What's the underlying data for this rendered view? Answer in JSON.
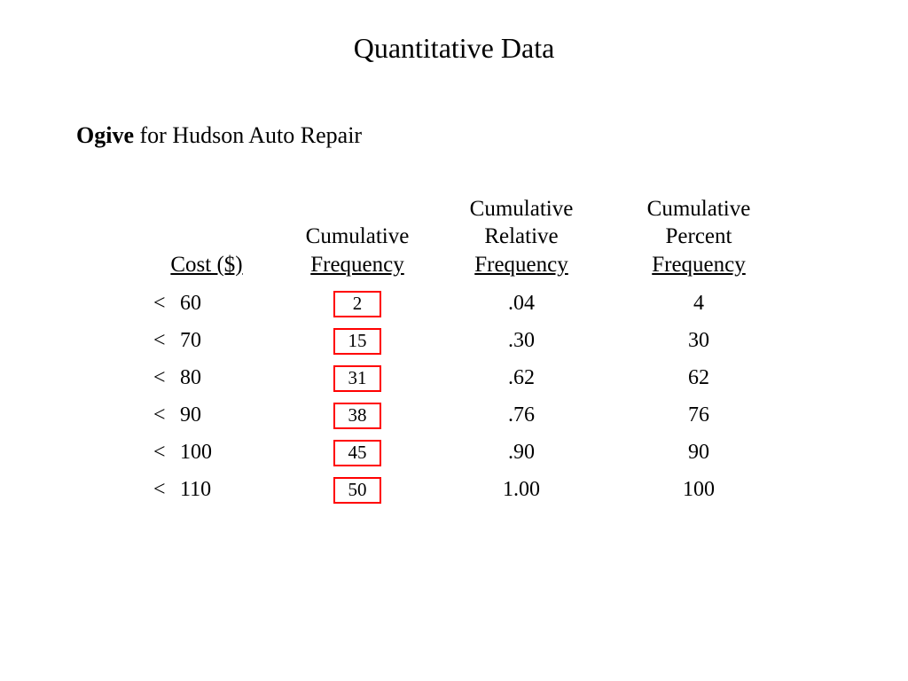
{
  "title": "Quantitative Data",
  "subtitle_bold": "Ogive",
  "subtitle_rest": " for Hudson Auto Repair",
  "columns": {
    "cost": {
      "line1": "",
      "line2": "Cost ($)"
    },
    "freq": {
      "line1": "Cumulative",
      "line2": "Frequency"
    },
    "rel": {
      "line1": "Cumulative",
      "line2": "Relative",
      "line3": "Frequency"
    },
    "pct": {
      "line1": "Cumulative",
      "line2": "Percent",
      "line3": "Frequency"
    }
  },
  "rows": [
    {
      "cost": "60",
      "freq": "2",
      "rel": ".04",
      "pct": "4"
    },
    {
      "cost": "70",
      "freq": "15",
      "rel": ".30",
      "pct": "30"
    },
    {
      "cost": "80",
      "freq": "31",
      "rel": ".62",
      "pct": "62"
    },
    {
      "cost": "90",
      "freq": "38",
      "rel": ".76",
      "pct": "76"
    },
    {
      "cost": "100",
      "freq": "45",
      "rel": ".90",
      "pct": "90"
    },
    {
      "cost": "110",
      "freq": "50",
      "rel": "1.00",
      "pct": "100"
    }
  ],
  "styling": {
    "background_color": "#ffffff",
    "text_color": "#000000",
    "highlight_border_color": "#ff0000",
    "highlight_border_width": 2.5,
    "font_family": "Times New Roman",
    "title_fontsize": 32,
    "subtitle_fontsize": 26,
    "header_fontsize": 25,
    "body_fontsize": 24,
    "box_fontsize": 21,
    "less_than_symbol": "<"
  }
}
